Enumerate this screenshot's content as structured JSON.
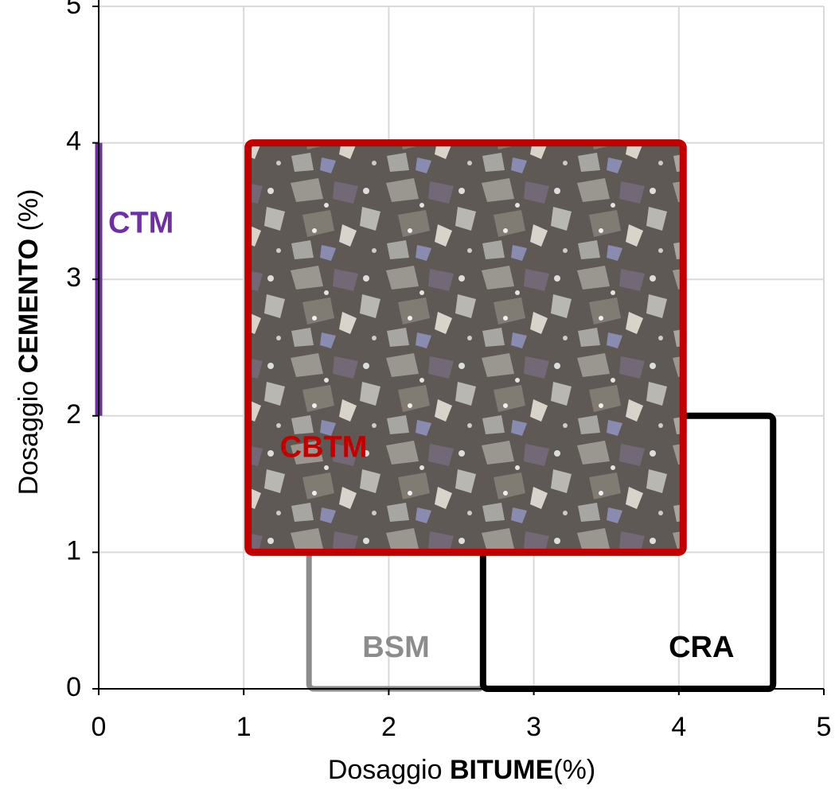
{
  "chart_data": {
    "type": "region",
    "xlabel": {
      "text": "Dosaggio",
      "bold": "BITUME",
      "unit": "(%)"
    },
    "ylabel": {
      "text": "Dosaggio",
      "bold": "CEMENTO",
      "unit": "(%)"
    },
    "xlim": [
      0,
      5
    ],
    "ylim": [
      0,
      5
    ],
    "xticks": [
      0,
      1,
      2,
      3,
      4,
      5
    ],
    "yticks": [
      0,
      1,
      2,
      3,
      4,
      5
    ],
    "grid": true,
    "regions": [
      {
        "name": "CTM",
        "color": "#7030a0",
        "x": [
          0,
          0
        ],
        "y": [
          2,
          4
        ]
      },
      {
        "name": "BSM",
        "color": "#8c8c8c",
        "x": [
          1.45,
          2.65
        ],
        "y": [
          0,
          1
        ]
      },
      {
        "name": "CRA",
        "color": "#000000",
        "x": [
          2.65,
          4.65
        ],
        "y": [
          0,
          2
        ]
      },
      {
        "name": "CBTM",
        "color": "#c00000",
        "x": [
          1.03,
          4.03
        ],
        "y": [
          1,
          4
        ]
      }
    ]
  }
}
